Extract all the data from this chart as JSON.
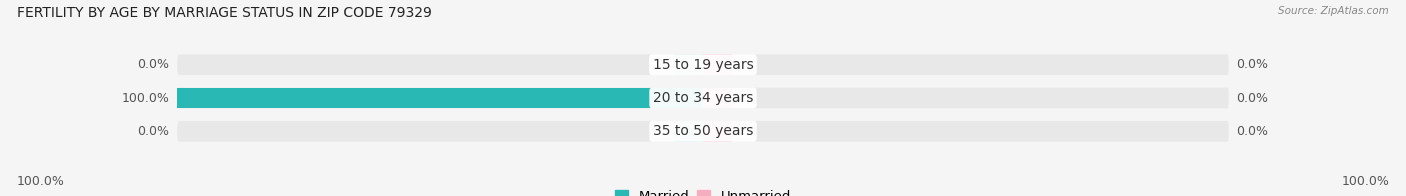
{
  "title": "FERTILITY BY AGE BY MARRIAGE STATUS IN ZIP CODE 79329",
  "source": "Source: ZipAtlas.com",
  "rows": [
    {
      "label": "15 to 19 years",
      "married": 0.0,
      "unmarried": 0.0
    },
    {
      "label": "20 to 34 years",
      "married": 100.0,
      "unmarried": 0.0
    },
    {
      "label": "35 to 50 years",
      "married": 0.0,
      "unmarried": 0.0
    }
  ],
  "married_color": "#2ab8b5",
  "unmarried_color": "#f5aec0",
  "bar_bg_married": "#b8e8e7",
  "bar_bg_unmarried": "#fad4e0",
  "bar_track_color": "#e8e8e8",
  "title_fontsize": 10,
  "source_fontsize": 7.5,
  "label_fontsize": 10,
  "tick_fontsize": 9,
  "legend_fontsize": 9.5,
  "max_val": 100.0,
  "stub_val": 5.5,
  "bottom_left_label": "100.0%",
  "bottom_right_label": "100.0%",
  "background_color": "#f5f5f5",
  "bar_height": 0.62,
  "title_color": "#222222",
  "source_color": "#888888",
  "label_color": "#333333",
  "tick_color": "#555555"
}
